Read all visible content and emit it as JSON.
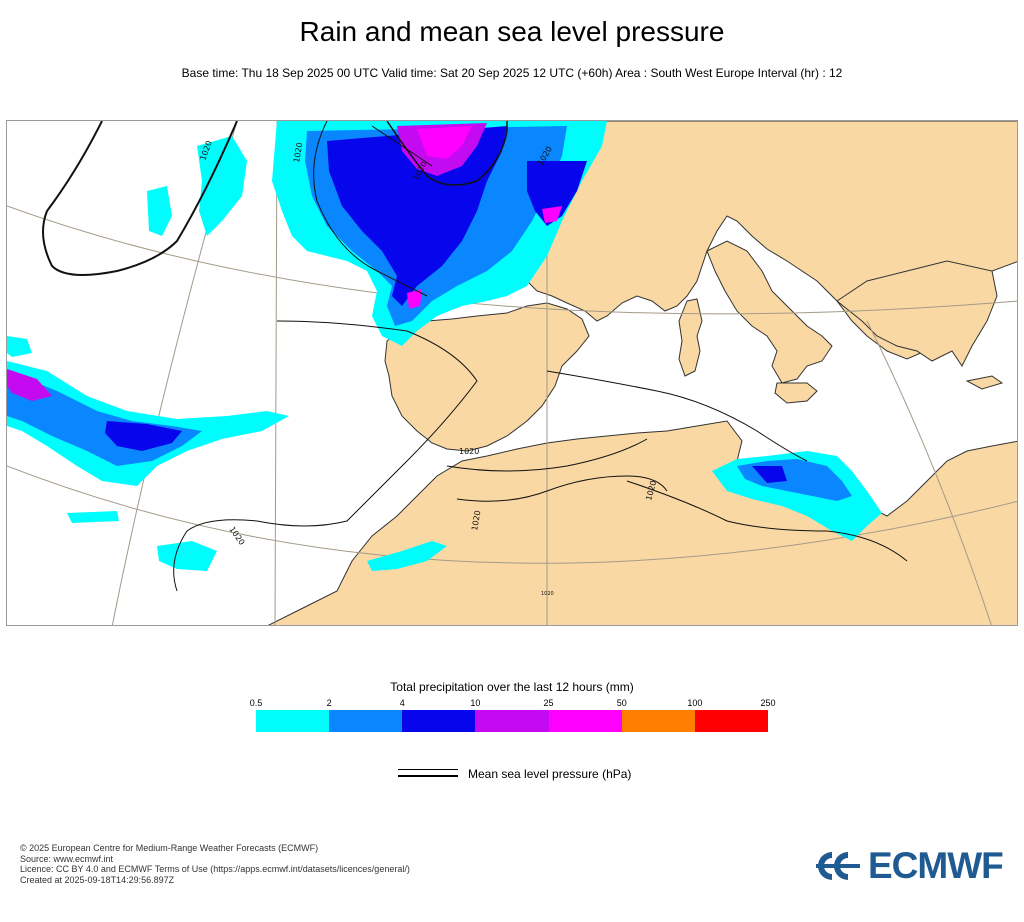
{
  "header": {
    "title": "Rain and mean sea level pressure",
    "subtitle": "Base time: Thu 18 Sep 2025 00 UTC Valid time: Sat 20 Sep 2025 12 UTC (+60h) Area : South West Europe Interval (hr) : 12"
  },
  "map": {
    "isobar_labels": [
      "1020",
      "1020",
      "1020",
      "1020",
      "1020",
      "1020",
      "1020",
      "1020",
      "1020"
    ],
    "colors": {
      "land": "#f9d8a4",
      "sea": "#ffffff",
      "coast": "#333333",
      "isobar": "#111111",
      "graticule": "#a49a88"
    }
  },
  "legend": {
    "title": "Total precipitation over the last 12 hours (mm)",
    "ticks": [
      "0.5",
      "2",
      "4",
      "10",
      "25",
      "50",
      "100",
      "250"
    ],
    "colors": [
      "#00fdfd",
      "#0a86ff",
      "#0705ec",
      "#c30af0",
      "#ff00fe",
      "#ff8000",
      "#ff0000"
    ],
    "pressure_label": "Mean sea level pressure (hPa)"
  },
  "footer": {
    "lines": [
      "© 2025 European Centre for Medium-Range Weather Forecasts (ECMWF)",
      "Source: www.ecmwf.int",
      "Licence: CC BY 4.0 and ECMWF Terms of Use (https://apps.ecmwf.int/datasets/licences/general/)",
      "Created at 2025-09-18T14:29:56.897Z"
    ]
  },
  "logo": {
    "text": "ECMWF",
    "icon": "ecmwf-logo-icon",
    "color": "#1f5b92"
  }
}
